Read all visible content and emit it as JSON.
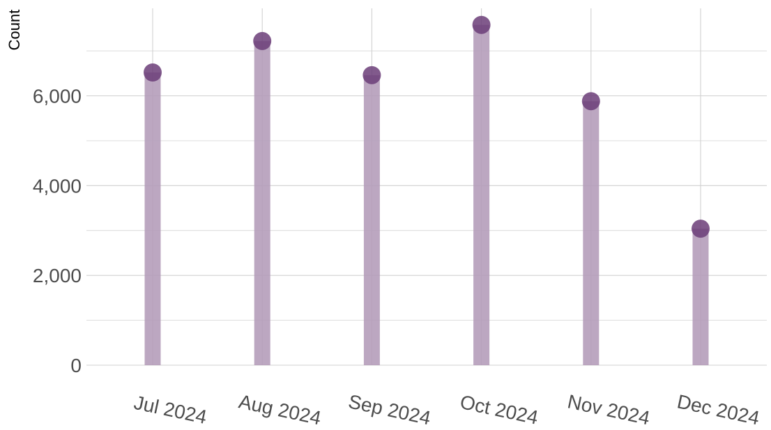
{
  "chart_data": {
    "type": "bar",
    "title": "",
    "xlabel": "",
    "ylabel": "Count",
    "categories": [
      "Jul 2024",
      "Aug 2024",
      "Sep 2024",
      "Oct 2024",
      "Nov 2024",
      "Dec 2024"
    ],
    "values": [
      6520,
      7220,
      6460,
      7580,
      5880,
      3040
    ],
    "ylim": [
      0,
      7800
    ],
    "yticks": [
      0,
      2000,
      4000,
      6000
    ],
    "ytick_labels": [
      "0",
      "2,000",
      "4,000",
      "6,000"
    ],
    "grid": true,
    "legend": "none",
    "colors": {
      "bar": "#b39bb8",
      "point": "#6b3d78"
    }
  }
}
